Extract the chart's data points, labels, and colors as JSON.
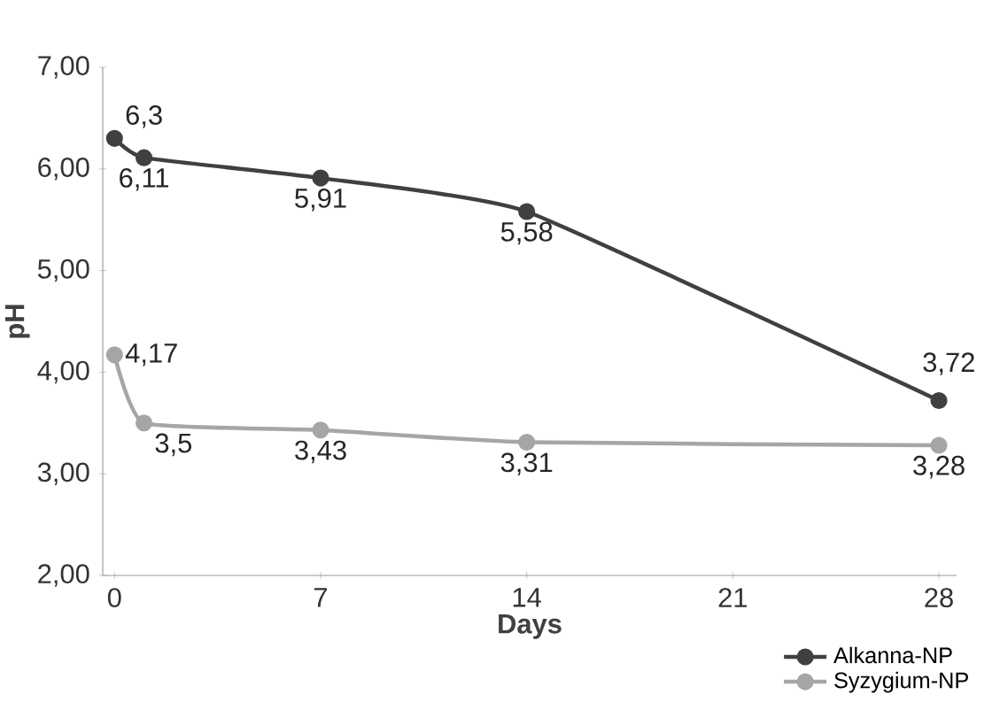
{
  "chart_data": {
    "type": "line",
    "xlabel": "Days",
    "ylabel": "pH",
    "xlim": [
      -0.4,
      28.6
    ],
    "ylim": [
      2,
      7
    ],
    "xticks": [
      0,
      7,
      14,
      21,
      28
    ],
    "yticks": [
      {
        "value": 2,
        "label": "2,00"
      },
      {
        "value": 3,
        "label": "3,00"
      },
      {
        "value": 4,
        "label": "4,00"
      },
      {
        "value": 5,
        "label": "5,00"
      },
      {
        "value": 6,
        "label": "6,00"
      },
      {
        "value": 7,
        "label": "7,00"
      }
    ],
    "x": [
      0,
      1,
      7,
      14,
      28
    ],
    "series": [
      {
        "name": "Alkanna-NP",
        "color": "#404040",
        "values": [
          6.3,
          6.11,
          5.91,
          5.58,
          3.72
        ],
        "value_labels": [
          "6,3",
          "6,11",
          "5,91",
          "5,58",
          "3,72"
        ]
      },
      {
        "name": "Syzygium-NP",
        "color": "#a6a6a6",
        "values": [
          4.17,
          3.5,
          3.43,
          3.31,
          3.28
        ],
        "value_labels": [
          "4,17",
          "3,5",
          "3,43",
          "3,31",
          "3,28"
        ]
      }
    ],
    "marker": "circle",
    "line_style": "solid",
    "grid": false,
    "legend": "bottom right"
  }
}
